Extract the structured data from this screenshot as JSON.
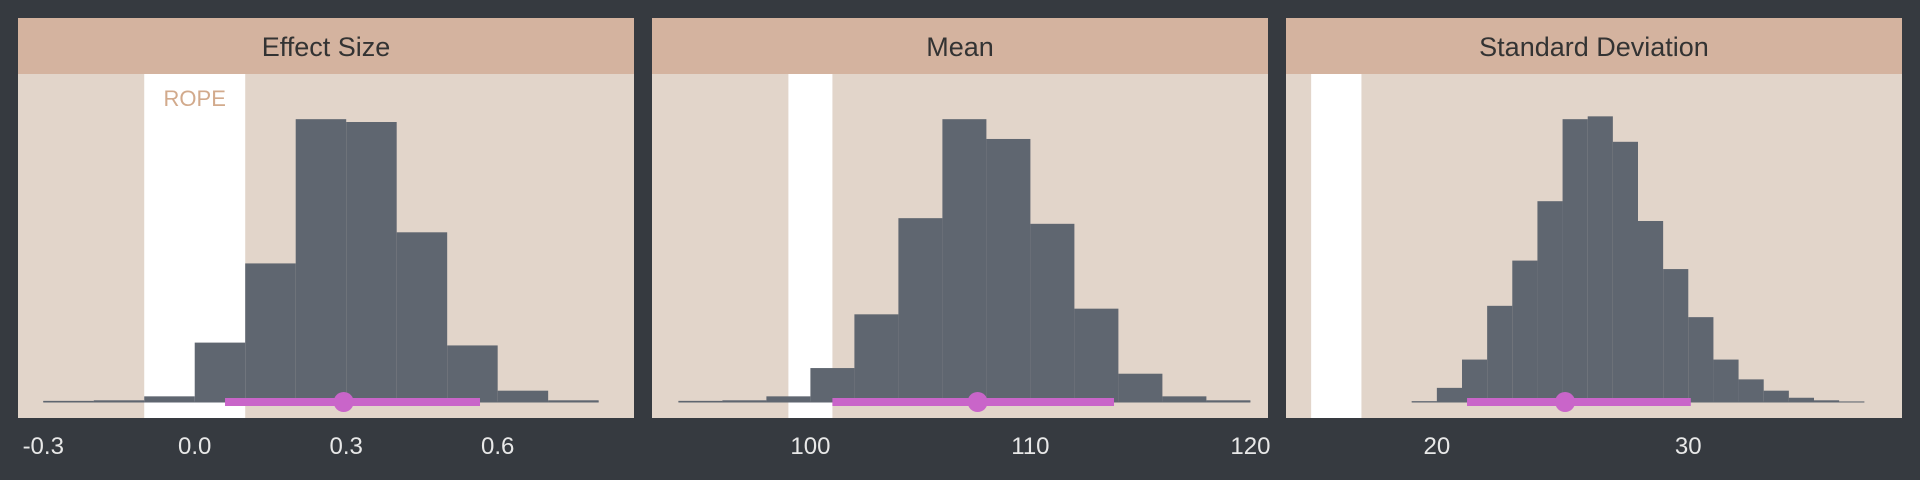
{
  "colors": {
    "background": "#363a40",
    "panel": "#e2d5ca",
    "strip": "#d4b39f",
    "bars": "#5f6670",
    "rope_band": "#ffffff",
    "rope_text": "#d2aa8c",
    "interval": "#c965c9",
    "tick_text": "#e8e8e8",
    "title_text": "#333333"
  },
  "chart_data": [
    {
      "type": "histogram",
      "title": "Effect Size",
      "xlim": [
        -0.35,
        0.87
      ],
      "xticks": [
        -0.3,
        0.0,
        0.3,
        0.6
      ],
      "tick_labels": [
        "-0.3",
        "0.0",
        "0.3",
        "0.6"
      ],
      "rope": [
        -0.1,
        0.1
      ],
      "rope_label": "ROPE",
      "y_max": 0.99,
      "bins": [
        {
          "x0": -0.3,
          "x1": -0.2,
          "h": 0.004
        },
        {
          "x0": -0.2,
          "x1": -0.1,
          "h": 0.006
        },
        {
          "x0": -0.1,
          "x1": 0.0,
          "h": 0.02
        },
        {
          "x0": 0.0,
          "x1": 0.1,
          "h": 0.21
        },
        {
          "x0": 0.1,
          "x1": 0.2,
          "h": 0.49
        },
        {
          "x0": 0.2,
          "x1": 0.3,
          "h": 1.0
        },
        {
          "x0": 0.3,
          "x1": 0.4,
          "h": 0.99
        },
        {
          "x0": 0.4,
          "x1": 0.5,
          "h": 0.6
        },
        {
          "x0": 0.5,
          "x1": 0.6,
          "h": 0.2
        },
        {
          "x0": 0.6,
          "x1": 0.7,
          "h": 0.04
        },
        {
          "x0": 0.7,
          "x1": 0.8,
          "h": 0.006
        }
      ],
      "interval": {
        "low": 0.06,
        "high": 0.565,
        "point": 0.295
      }
    },
    {
      "type": "histogram",
      "title": "Mean",
      "xlim": [
        92.8,
        120.8
      ],
      "xticks": [
        100,
        110,
        120
      ],
      "tick_labels": [
        "100",
        "110",
        "120"
      ],
      "rope": [
        99,
        101
      ],
      "y_max": 0.99,
      "bins": [
        {
          "x0": 94,
          "x1": 96,
          "h": 0.004
        },
        {
          "x0": 96,
          "x1": 98,
          "h": 0.006
        },
        {
          "x0": 98,
          "x1": 100,
          "h": 0.02
        },
        {
          "x0": 100,
          "x1": 102,
          "h": 0.12
        },
        {
          "x0": 102,
          "x1": 104,
          "h": 0.31
        },
        {
          "x0": 104,
          "x1": 106,
          "h": 0.65
        },
        {
          "x0": 106,
          "x1": 108,
          "h": 1.0
        },
        {
          "x0": 108,
          "x1": 110,
          "h": 0.93
        },
        {
          "x0": 110,
          "x1": 112,
          "h": 0.63
        },
        {
          "x0": 112,
          "x1": 114,
          "h": 0.33
        },
        {
          "x0": 114,
          "x1": 116,
          "h": 0.1
        },
        {
          "x0": 116,
          "x1": 118,
          "h": 0.02
        },
        {
          "x0": 118,
          "x1": 120,
          "h": 0.006
        }
      ],
      "interval": {
        "low": 101.0,
        "high": 113.8,
        "point": 107.6
      }
    },
    {
      "type": "histogram",
      "title": "Standard Deviation",
      "xlim": [
        14.0,
        38.5
      ],
      "xticks": [
        20,
        30
      ],
      "tick_labels": [
        "20",
        "30"
      ],
      "rope": [
        15,
        17
      ],
      "y_max": 0.99,
      "bins": [
        {
          "x0": 19,
          "x1": 20,
          "h": 0.003
        },
        {
          "x0": 20,
          "x1": 21,
          "h": 0.05
        },
        {
          "x0": 21,
          "x1": 22,
          "h": 0.15
        },
        {
          "x0": 22,
          "x1": 23,
          "h": 0.34
        },
        {
          "x0": 23,
          "x1": 24,
          "h": 0.5
        },
        {
          "x0": 24,
          "x1": 25,
          "h": 0.71
        },
        {
          "x0": 25,
          "x1": 26,
          "h": 1.0
        },
        {
          "x0": 26,
          "x1": 27,
          "h": 1.01
        },
        {
          "x0": 27,
          "x1": 28,
          "h": 0.92
        },
        {
          "x0": 28,
          "x1": 29,
          "h": 0.64
        },
        {
          "x0": 29,
          "x1": 30,
          "h": 0.47
        },
        {
          "x0": 30,
          "x1": 31,
          "h": 0.3
        },
        {
          "x0": 31,
          "x1": 32,
          "h": 0.15
        },
        {
          "x0": 32,
          "x1": 33,
          "h": 0.08
        },
        {
          "x0": 33,
          "x1": 34,
          "h": 0.04
        },
        {
          "x0": 34,
          "x1": 35,
          "h": 0.015
        },
        {
          "x0": 35,
          "x1": 36,
          "h": 0.006
        },
        {
          "x0": 36,
          "x1": 37,
          "h": 0.002
        }
      ],
      "interval": {
        "low": 21.2,
        "high": 30.1,
        "point": 25.1
      }
    }
  ]
}
